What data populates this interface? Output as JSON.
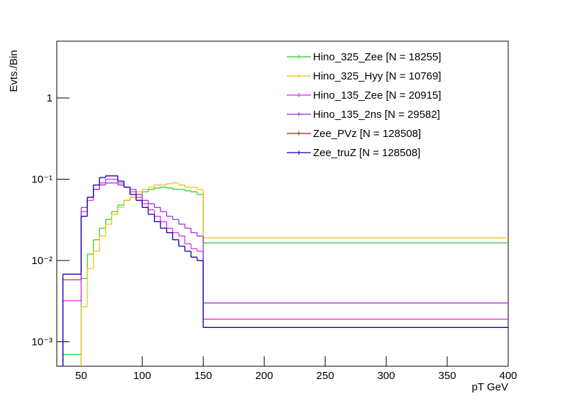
{
  "chart_data": {
    "type": "histogram",
    "y_label": "Evts./Bin",
    "x_label": "pT GeV",
    "bins": [
      35,
      40,
      45,
      50,
      55,
      60,
      65,
      70,
      75,
      80,
      85,
      90,
      95,
      100,
      105,
      110,
      115,
      120,
      125,
      130,
      135,
      140,
      145,
      150,
      400
    ],
    "xlim": [
      30,
      400
    ],
    "xticks": [
      50,
      100,
      150,
      200,
      250,
      300,
      350,
      400
    ],
    "ylim": [
      0.0005,
      5
    ],
    "log_y": true,
    "yticks": [
      {
        "value": 0.001,
        "label": "10⁻³"
      },
      {
        "value": 0.01,
        "label": "10⁻²"
      },
      {
        "value": 0.1,
        "label": "10⁻¹"
      },
      1
    ],
    "legend": "top-right",
    "series": [
      {
        "name": "Hino_325_Zee [N = 18255]",
        "color": "#22cc22",
        "values": [
          0.0007,
          0.0007,
          0.0007,
          0.006,
          0.012,
          0.018,
          0.025,
          0.032,
          0.04,
          0.048,
          0.055,
          0.06,
          0.065,
          0.07,
          0.075,
          0.078,
          0.08,
          0.078,
          0.075,
          0.075,
          0.072,
          0.07,
          0.065,
          0.0165
        ]
      },
      {
        "name": "Hino_325_Hyy [N = 10769]",
        "color": "#f0c000",
        "values": [
          0,
          0,
          0,
          0.0027,
          0.008,
          0.013,
          0.02,
          0.028,
          0.037,
          0.045,
          0.055,
          0.06,
          0.07,
          0.075,
          0.08,
          0.085,
          0.085,
          0.088,
          0.09,
          0.085,
          0.08,
          0.08,
          0.075,
          0.019
        ]
      },
      {
        "name": "Hino_135_Zee [N = 20915]",
        "color": "#dd22dd",
        "values": [
          0.0032,
          0.0032,
          0.0032,
          0.04,
          0.055,
          0.075,
          0.09,
          0.1,
          0.1,
          0.09,
          0.08,
          0.07,
          0.06,
          0.05,
          0.042,
          0.035,
          0.03,
          0.025,
          0.022,
          0.02,
          0.016,
          0.014,
          0.013,
          0.0019
        ]
      },
      {
        "name": "Hino_135_2ns [N = 29582]",
        "color": "#9922cc",
        "values": [
          0.0058,
          0.0058,
          0.0058,
          0.045,
          0.06,
          0.075,
          0.085,
          0.09,
          0.09,
          0.085,
          0.08,
          0.075,
          0.065,
          0.055,
          0.05,
          0.045,
          0.04,
          0.035,
          0.032,
          0.028,
          0.025,
          0.022,
          0.02,
          0.003
        ]
      },
      {
        "name": "Zee_PVz [N = 128508]",
        "color": "#ee0000",
        "values": [
          0.0068,
          0.0068,
          0.0068,
          0.035,
          0.06,
          0.085,
          0.105,
          0.11,
          0.11,
          0.095,
          0.08,
          0.065,
          0.055,
          0.045,
          0.037,
          0.03,
          0.025,
          0.022,
          0.018,
          0.015,
          0.013,
          0.011,
          0.01,
          0.0015
        ]
      },
      {
        "name": "Zee_truZ [N = 128508]",
        "color": "#0000cc",
        "values": [
          0.0068,
          0.0068,
          0.0068,
          0.035,
          0.06,
          0.085,
          0.105,
          0.11,
          0.11,
          0.095,
          0.08,
          0.065,
          0.055,
          0.045,
          0.037,
          0.03,
          0.025,
          0.022,
          0.018,
          0.015,
          0.013,
          0.011,
          0.01,
          0.0015
        ]
      }
    ]
  }
}
